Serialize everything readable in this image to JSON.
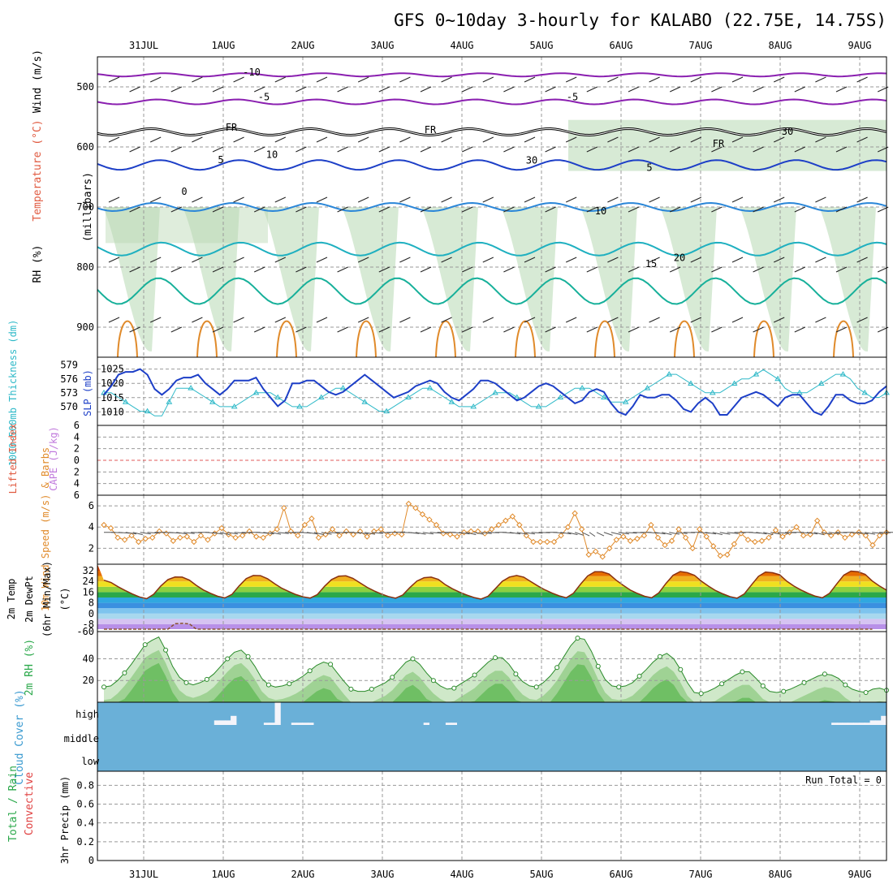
{
  "title": "GFS 0~10day 3-hourly for KALABO (22.75E, 14.75S)",
  "colors": {
    "grid": "#999999",
    "rh_fill": "#b7d8b2",
    "thk": "#2fb9c8",
    "slp": "#1d3fc7",
    "wind": "#e08a2a",
    "cloud_bg": "#6ab0d8",
    "temp_warm": "#e66c00",
    "cold": "#9a6ad8"
  },
  "chart_data": [
    {
      "type": "heatmap",
      "panel": "upper-air",
      "xlabels": [
        "31JUL",
        "1AUG",
        "2AUG",
        "3AUG",
        "4AUG",
        "5AUG",
        "6AUG",
        "7AUG",
        "8AUG",
        "9AUG"
      ],
      "ylabel_parts": [
        "RH (%)",
        "Temperature (°C)",
        "Wind (m/s)",
        "(millibars)"
      ],
      "yticks": [
        500,
        600,
        700,
        800,
        900
      ],
      "ylim": [
        450,
        950
      ],
      "contour_labels": [
        "-10",
        "-5",
        "-5",
        "FR",
        "FR",
        "FR",
        "5",
        "5",
        "0",
        "10",
        "15",
        "20",
        "30",
        "30",
        "10"
      ]
    },
    {
      "type": "line",
      "panel": "thickness-slp",
      "y1label": "1000~500mb Thickness (dm)",
      "y2label": "SLP (mb)",
      "y1ticks": [
        570,
        573,
        576,
        579
      ],
      "y2ticks": [
        1010,
        1015,
        1020,
        1025
      ],
      "slp": [
        1016,
        1019,
        1023,
        1024,
        1024,
        1025,
        1023,
        1018,
        1016,
        1018,
        1021,
        1022,
        1022,
        1023,
        1020,
        1018,
        1016,
        1018,
        1021,
        1021,
        1021,
        1022,
        1018,
        1015,
        1012,
        1014,
        1020,
        1020,
        1021,
        1021,
        1019,
        1017,
        1016,
        1017,
        1019,
        1021,
        1023,
        1021,
        1019,
        1017,
        1015,
        1016,
        1017,
        1019,
        1020,
        1021,
        1020,
        1017,
        1015,
        1014,
        1016,
        1018,
        1021,
        1021,
        1020,
        1018,
        1016,
        1014,
        1015,
        1017,
        1019,
        1020,
        1019,
        1017,
        1015,
        1013,
        1014,
        1017,
        1018,
        1017,
        1013,
        1010,
        1009,
        1012,
        1016,
        1015,
        1015,
        1016,
        1016,
        1014,
        1011,
        1010,
        1013,
        1015,
        1013,
        1009,
        1009,
        1012,
        1015,
        1016,
        1017,
        1016,
        1014,
        1012,
        1015,
        1016,
        1016,
        1013,
        1010,
        1009,
        1012,
        1016,
        1016,
        1014,
        1013,
        1013,
        1014,
        1017,
        1019
      ],
      "thickness": [
        573,
        573,
        572,
        571,
        570,
        569,
        569,
        568,
        568,
        571,
        574,
        574,
        574,
        573,
        572,
        571,
        570,
        570,
        570,
        571,
        572,
        573,
        573,
        573,
        572,
        571,
        570,
        570,
        570,
        571,
        572,
        573,
        574,
        574,
        573,
        572,
        571,
        570,
        569,
        569,
        570,
        571,
        572,
        573,
        574,
        574,
        573,
        572,
        571,
        570,
        570,
        570,
        571,
        572,
        573,
        573,
        573,
        572,
        571,
        570,
        570,
        570,
        571,
        572,
        573,
        574,
        574,
        574,
        573,
        572,
        571,
        571,
        571,
        572,
        573,
        574,
        575,
        576,
        577,
        577,
        576,
        575,
        574,
        573,
        573,
        573,
        574,
        575,
        576,
        576,
        577,
        578,
        577,
        576,
        574,
        573,
        573,
        573,
        574,
        575,
        576,
        577,
        577,
        576,
        574,
        573,
        572,
        572,
        573
      ]
    },
    {
      "type": "line",
      "panel": "cape-li",
      "ylabel_parts": [
        "Lifted Index",
        "CAPE (J/kg)"
      ],
      "yticks": [
        "6",
        "4",
        "2",
        "0",
        "2",
        "4",
        "6"
      ],
      "lifted_index_zero_line": 0
    },
    {
      "type": "line",
      "panel": "wind10m",
      "ylabel": "10m Wind Speed (m/s) & Barbs",
      "yticks": [
        2,
        4,
        6
      ],
      "ylim": [
        0.5,
        7
      ],
      "speed": [
        4.2,
        3.9,
        3.0,
        2.8,
        3.2,
        2.6,
        2.9,
        3.0,
        3.6,
        3.4,
        2.7,
        3.0,
        3.1,
        2.6,
        3.2,
        2.8,
        3.4,
        3.9,
        3.3,
        3.0,
        3.2,
        3.6,
        3.1,
        3.0,
        3.4,
        3.8,
        5.8,
        3.6,
        3.2,
        4.2,
        4.8,
        3.0,
        3.3,
        3.8,
        3.2,
        3.6,
        3.3,
        3.6,
        3.1,
        3.6,
        3.8,
        3.2,
        3.4,
        3.3,
        6.2,
        5.8,
        5.2,
        4.7,
        4.2,
        3.4,
        3.3,
        3.1,
        3.5,
        3.6,
        3.6,
        3.4,
        3.8,
        4.2,
        4.6,
        5.0,
        4.2,
        3.2,
        2.6,
        2.6,
        2.6,
        2.6,
        3.2,
        4.0,
        5.3,
        3.8,
        1.4,
        1.7,
        1.2,
        2.0,
        2.8,
        3.1,
        2.7,
        2.9,
        3.2,
        4.2,
        3.0,
        2.3,
        2.7,
        3.8,
        3.0,
        2.0,
        3.8,
        3.1,
        2.2,
        1.3,
        1.4,
        2.4,
        3.4,
        2.8,
        2.6,
        2.7,
        3.0,
        3.7,
        3.1,
        3.5,
        4.0,
        3.2,
        3.3,
        4.6,
        3.5,
        3.2,
        3.5,
        3.0,
        3.3,
        3.5,
        3.2,
        2.3,
        3.2,
        3.5
      ],
      "wind_dir_deg": [
        90,
        95,
        100,
        110,
        120,
        110,
        100,
        90,
        95,
        100,
        110,
        105,
        95,
        90,
        100,
        115,
        120,
        110,
        100,
        95,
        90,
        100,
        110,
        115,
        105,
        95,
        90,
        100,
        110,
        120,
        115,
        100,
        95,
        90,
        100,
        110,
        115,
        105,
        95,
        90,
        85,
        95,
        105,
        115,
        110,
        100,
        95,
        90,
        100,
        110,
        120,
        115,
        105,
        95,
        90,
        100,
        110,
        115,
        110,
        100,
        95,
        90,
        100,
        110,
        120,
        130,
        140,
        150,
        140,
        130,
        120,
        110,
        100,
        95,
        90,
        100,
        110,
        120,
        115,
        105,
        95,
        90,
        100,
        110,
        120,
        115,
        105,
        95,
        90,
        100,
        110,
        120,
        115,
        105,
        95,
        90,
        100,
        110,
        120,
        115,
        105,
        95,
        90,
        100,
        110,
        115,
        105,
        95,
        90
      ]
    },
    {
      "type": "area",
      "panel": "temperature",
      "ylabel_parts": [
        "2m Temp",
        "2m DewPt",
        "(6hr Min/Max)",
        "(°C)"
      ],
      "yticks": [
        "32",
        "24",
        "16",
        "8",
        "0",
        "-8",
        "-60"
      ],
      "temp": [
        24.9,
        23.2,
        20.0,
        17.2,
        14.6,
        12.4,
        11.1,
        14.4,
        20.6,
        25.4,
        27.3,
        27.2,
        25.0,
        21.0,
        17.6,
        15.1,
        12.9,
        11.7,
        14.3,
        20.6,
        26.1,
        28.4,
        28.3,
        26.0,
        22.3,
        18.9,
        16.4,
        14.2,
        12.5,
        11.6,
        14.2,
        20.3,
        25.4,
        27.9,
        28.2,
        26.3,
        22.9,
        19.6,
        16.9,
        14.6,
        12.7,
        11.5,
        13.9,
        19.4,
        24.3,
        26.8,
        27.2,
        25.5,
        21.5,
        18.5,
        16.0,
        13.9,
        12.0,
        10.8,
        13.0,
        18.5,
        24.1,
        27.3,
        28.4,
        27.2,
        23.9,
        20.6,
        17.7,
        15.3,
        13.2,
        11.8,
        15.2,
        22.0,
        28.1,
        31.3,
        31.2,
        29.6,
        24.9,
        21.1,
        17.5,
        15.0,
        12.9,
        11.8,
        15.5,
        22.5,
        28.6,
        31.4,
        30.6,
        28.6,
        24.1,
        20.4,
        17.1,
        14.7,
        12.6,
        11.5,
        14.6,
        21.3,
        27.8,
        31.0,
        30.5,
        28.9,
        24.1,
        20.5,
        17.6,
        15.1,
        13.0,
        11.8,
        15.2,
        22.1,
        28.7,
        31.7,
        31.3,
        29.3,
        24.3,
        20.6,
        17.5
      ],
      "dewpt": [
        -10.5,
        -10.8,
        -10.8,
        -9.9,
        -9.2,
        -8.9,
        -9.0,
        -9.7,
        -9.3,
        -8.4,
        -7.6,
        -7.3,
        -7.7,
        -8.3,
        -8.6,
        -8.9,
        -9.2,
        -9.5,
        -9.6,
        -9.7,
        -9.5,
        -9.1,
        -8.6,
        -8.1,
        -8.2,
        -8.4,
        -8.7,
        -9.1,
        -9.2,
        -9.4,
        -9.7,
        -9.6,
        -9.3,
        -8.7,
        -8.3,
        -8.2,
        -8.5,
        -8.5,
        -8.9,
        -9.3,
        -9.4,
        -9.6,
        -9.6,
        -9.5,
        -9.2,
        -8.9,
        -8.6,
        -8.6,
        -8.7,
        -9.2,
        -9.7,
        -9.9,
        -10.1,
        -10.3,
        -10.5,
        -10.9,
        -11.1,
        -11.0,
        -10.9,
        -11.2,
        -11.8,
        -12.6,
        -13.0,
        -13.1,
        -13.1,
        -13.1,
        -13.3,
        -13.5,
        -13.4,
        -13.3,
        -13.4,
        -13.6,
        -13.7,
        -13.7,
        -13.6,
        -13.6,
        -13.7,
        -13.9,
        -14.0,
        -13.8,
        -13.4,
        -13.2,
        -13.3,
        -13.3,
        -13.4,
        -13.5,
        -13.7,
        -13.7,
        -13.6,
        -13.5,
        -13.5,
        -13.5,
        -13.5,
        -13.7,
        -13.7,
        -13.6,
        -13.6,
        -13.7,
        -13.6,
        -13.6,
        -13.8,
        -13.9,
        -13.7,
        -13.5,
        -14.7,
        -18.2,
        -22.9,
        -28.1,
        -33.4
      ]
    },
    {
      "type": "area",
      "panel": "rh2m",
      "ylabel": "2m RH (%)",
      "yticks": [
        20,
        40
      ],
      "ylim": [
        0,
        65
      ],
      "rh": [
        14,
        15,
        20,
        27,
        35,
        44,
        53,
        57,
        60,
        48,
        33,
        23,
        18,
        16,
        18,
        21,
        26,
        33,
        40,
        46,
        48,
        42,
        33,
        22,
        16,
        14,
        15,
        17,
        20,
        24,
        29,
        34,
        37,
        35,
        27,
        19,
        12,
        10,
        10,
        12,
        15,
        18,
        23,
        30,
        37,
        40,
        35,
        27,
        20,
        15,
        12,
        13,
        17,
        21,
        25,
        31,
        37,
        41,
        41,
        35,
        26,
        19,
        15,
        14,
        18,
        24,
        32,
        42,
        52,
        59,
        58,
        47,
        33,
        21,
        15,
        14,
        15,
        18,
        24,
        30,
        37,
        42,
        45,
        40,
        30,
        18,
        9,
        8,
        10,
        13,
        17,
        21,
        25,
        28,
        28,
        22,
        15,
        10,
        9,
        10,
        12,
        15,
        18,
        21,
        24,
        26,
        25,
        22,
        16,
        12,
        10,
        9,
        12,
        13,
        11
      ],
      "rh_sparse": [
        10,
        10,
        11,
        13,
        16,
        20,
        22,
        24,
        25,
        22,
        16,
        10,
        10,
        11,
        12,
        15,
        17,
        19,
        20,
        22,
        24,
        27,
        30,
        28,
        20,
        13,
        10,
        10,
        10,
        11,
        13,
        16,
        20,
        22,
        24,
        25,
        26,
        26,
        20,
        14,
        11,
        10,
        10,
        11,
        11,
        12,
        12,
        13,
        12,
        12,
        12,
        12,
        12,
        12
      ]
    },
    {
      "type": "bar",
      "panel": "cloud",
      "ylabel": "Cloud Cover (%)",
      "yticks": [
        "high",
        "middle",
        "low"
      ],
      "high_cover": [
        0,
        0,
        0,
        0,
        0,
        0,
        0,
        0,
        0,
        0,
        0,
        0,
        0,
        0,
        0,
        0,
        0,
        0,
        0,
        0,
        20,
        20,
        20,
        40,
        0,
        0,
        0,
        0,
        0,
        10,
        10,
        100,
        0,
        0,
        10,
        10,
        10,
        10,
        0,
        0,
        0,
        0,
        0,
        0,
        0,
        0,
        0,
        0,
        0,
        0,
        0,
        0,
        0,
        0,
        0,
        0,
        0,
        0,
        10,
        0,
        0,
        0,
        10,
        10,
        0,
        0,
        0,
        0,
        0,
        0,
        0,
        0,
        0,
        0,
        0,
        0,
        0,
        0,
        0,
        0,
        0,
        0,
        0,
        0,
        0,
        0,
        0,
        0,
        0,
        0,
        0,
        0,
        0,
        0,
        0,
        0,
        0,
        0,
        0,
        0,
        0,
        0,
        0,
        0,
        0,
        0,
        0,
        0,
        0,
        0,
        0,
        0,
        0,
        0,
        0,
        0,
        0,
        0,
        0,
        0,
        0,
        0,
        0,
        0,
        0,
        0,
        0,
        0,
        0,
        0,
        0,
        0,
        10,
        10,
        10,
        10,
        10,
        10,
        10,
        20,
        20,
        40
      ]
    },
    {
      "type": "bar",
      "panel": "precip",
      "ylabel_parts": [
        "Total / Rain",
        "Convective",
        "3hr Precip (mm)"
      ],
      "yticks": [
        0,
        0.2,
        0.4,
        0.6,
        0.8
      ],
      "ylim": [
        0,
        0.95
      ],
      "run_total_label": "Run Total = 0",
      "values": []
    }
  ]
}
